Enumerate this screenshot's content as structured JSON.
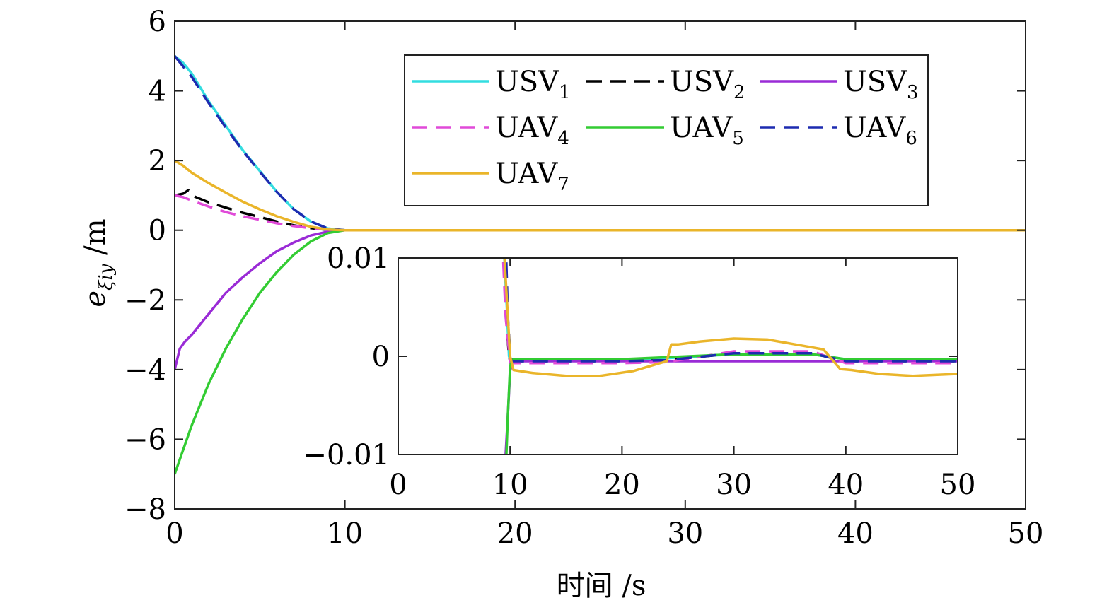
{
  "chart_data": [
    {
      "type": "line",
      "xlabel": "时间 /s",
      "ylabel": {
        "base": "e",
        "sub": "ξiy",
        "unit": " /m"
      },
      "xlim": [
        0,
        50
      ],
      "ylim": [
        -8,
        6
      ],
      "xticks": [
        "0",
        "10",
        "20",
        "30",
        "40",
        "50"
      ],
      "yticks": [
        "−8",
        "−6",
        "−4",
        "−2",
        "0",
        "2",
        "4",
        "6"
      ],
      "grid": false,
      "legend_position": "top-right",
      "series": [
        {
          "name": "USV",
          "sub": "1",
          "color": "#33dde0",
          "dash": "solid",
          "x": [
            0,
            0.5,
            1,
            2,
            3,
            4,
            5,
            6,
            7,
            8,
            9,
            10,
            50
          ],
          "y": [
            5.0,
            4.8,
            4.5,
            3.7,
            3.0,
            2.3,
            1.7,
            1.1,
            0.6,
            0.25,
            0.05,
            0,
            0
          ]
        },
        {
          "name": "USV",
          "sub": "2",
          "color": "#000000",
          "dash": "dashed",
          "x": [
            0,
            0.5,
            0.8,
            1,
            2,
            3,
            4,
            5,
            6,
            7,
            8,
            9,
            10,
            50
          ],
          "y": [
            1.0,
            1.05,
            1.15,
            1.0,
            0.8,
            0.65,
            0.5,
            0.38,
            0.25,
            0.14,
            0.06,
            0.01,
            0,
            0
          ]
        },
        {
          "name": "USV",
          "sub": "3",
          "color": "#9a2bd6",
          "dash": "solid",
          "x": [
            0,
            0.3,
            0.6,
            1,
            2,
            3,
            4,
            5,
            6,
            7,
            8,
            9,
            10,
            50
          ],
          "y": [
            -4.0,
            -3.4,
            -3.2,
            -3.0,
            -2.4,
            -1.8,
            -1.35,
            -0.95,
            -0.6,
            -0.35,
            -0.15,
            -0.04,
            0,
            0
          ]
        },
        {
          "name": "UAV",
          "sub": "4",
          "color": "#e04ad8",
          "dash": "dashed",
          "x": [
            0,
            0.5,
            1,
            2,
            3,
            4,
            5,
            6,
            7,
            8,
            9,
            10,
            50
          ],
          "y": [
            1.0,
            0.95,
            0.85,
            0.68,
            0.52,
            0.4,
            0.3,
            0.2,
            0.12,
            0.06,
            0.02,
            0,
            0
          ]
        },
        {
          "name": "UAV",
          "sub": "5",
          "color": "#33cc33",
          "dash": "solid",
          "x": [
            0,
            0.5,
            1,
            2,
            3,
            4,
            5,
            6,
            7,
            8,
            9,
            10,
            50
          ],
          "y": [
            -7.0,
            -6.3,
            -5.6,
            -4.4,
            -3.4,
            -2.55,
            -1.8,
            -1.2,
            -0.7,
            -0.32,
            -0.08,
            0,
            0
          ]
        },
        {
          "name": "UAV",
          "sub": "6",
          "color": "#1d2bb0",
          "dash": "dashed",
          "x": [
            0,
            0.5,
            1,
            2,
            3,
            4,
            5,
            6,
            7,
            8,
            9,
            10,
            50
          ],
          "y": [
            5.0,
            4.7,
            4.4,
            3.65,
            2.95,
            2.28,
            1.68,
            1.1,
            0.6,
            0.25,
            0.05,
            0,
            0
          ]
        },
        {
          "name": "UAV",
          "sub": "7",
          "color": "#eab52a",
          "dash": "solid",
          "x": [
            0,
            0.5,
            1,
            2,
            3,
            4,
            5,
            6,
            7,
            8,
            9,
            10,
            50
          ],
          "y": [
            2.0,
            1.85,
            1.65,
            1.35,
            1.08,
            0.82,
            0.6,
            0.4,
            0.24,
            0.1,
            0.02,
            0,
            0
          ]
        }
      ]
    },
    {
      "type": "line",
      "role": "inset",
      "xlim": [
        0,
        50
      ],
      "ylim": [
        -0.01,
        0.01
      ],
      "xticks": [
        "0",
        "10",
        "20",
        "30",
        "40",
        "50"
      ],
      "yticks": [
        "−0.01",
        "0",
        "0.01"
      ],
      "grid": false,
      "series": [
        {
          "color": "#33dde0",
          "dash": "solid",
          "x": [
            9.4,
            9.7,
            9.9,
            10.0,
            20,
            24,
            30,
            37,
            40,
            50
          ],
          "y": [
            0.012,
            0.005,
            0.0,
            -0.0003,
            -0.0003,
            -0.0002,
            0.0002,
            0.0002,
            -0.0003,
            -0.0003
          ]
        },
        {
          "name_ref": 2,
          "color": "#000000",
          "dash": "dashed",
          "x": [
            9.3,
            9.7,
            9.9,
            10.0,
            20,
            24,
            30,
            37,
            40,
            50
          ],
          "y": [
            0.012,
            0.003,
            0.0,
            -0.0005,
            -0.0005,
            -0.0004,
            0.0003,
            0.0003,
            -0.0005,
            -0.0005
          ]
        },
        {
          "color": "#9a2bd6",
          "dash": "solid",
          "x": [
            9.5,
            9.8,
            10.0,
            10.2,
            50
          ],
          "y": [
            -0.012,
            -0.006,
            -0.0015,
            -0.0005,
            -0.0005
          ]
        },
        {
          "color": "#e04ad8",
          "dash": "dashed",
          "x": [
            9.3,
            9.6,
            9.9,
            10.0,
            20,
            24,
            30,
            37,
            40,
            50
          ],
          "y": [
            0.012,
            0.004,
            0.0005,
            -0.0007,
            -0.0007,
            -0.0006,
            0.0005,
            0.0005,
            -0.0007,
            -0.0007
          ]
        },
        {
          "color": "#33cc33",
          "dash": "solid",
          "x": [
            9.6,
            9.8,
            10.0,
            10.2,
            20,
            24,
            30,
            37,
            40,
            50
          ],
          "y": [
            -0.012,
            -0.006,
            -0.001,
            -0.0003,
            -0.0003,
            -0.0001,
            0.0002,
            0.0002,
            -0.0003,
            -0.0003
          ]
        },
        {
          "color": "#1d2bb0",
          "dash": "dashed",
          "x": [
            9.6,
            9.8,
            10.0,
            10.1,
            20,
            24,
            30,
            37,
            40,
            50
          ],
          "y": [
            0.012,
            0.004,
            0.0005,
            -0.0005,
            -0.0005,
            -0.0004,
            0.0003,
            0.0003,
            -0.0005,
            -0.0005
          ]
        },
        {
          "color": "#eab52a",
          "dash": "solid",
          "x": [
            9.4,
            9.8,
            10.0,
            10.3,
            12,
            15,
            18,
            21,
            24,
            24.4,
            25,
            27,
            30,
            33,
            36,
            38,
            39.5,
            40.5,
            43,
            46,
            50
          ],
          "y": [
            0.012,
            0.004,
            0.0,
            -0.0014,
            -0.0017,
            -0.002,
            -0.002,
            -0.0015,
            -0.0005,
            0.0012,
            0.0012,
            0.0015,
            0.0018,
            0.0017,
            0.0011,
            0.0007,
            -0.0013,
            -0.0014,
            -0.0018,
            -0.002,
            -0.0018
          ]
        }
      ]
    }
  ]
}
